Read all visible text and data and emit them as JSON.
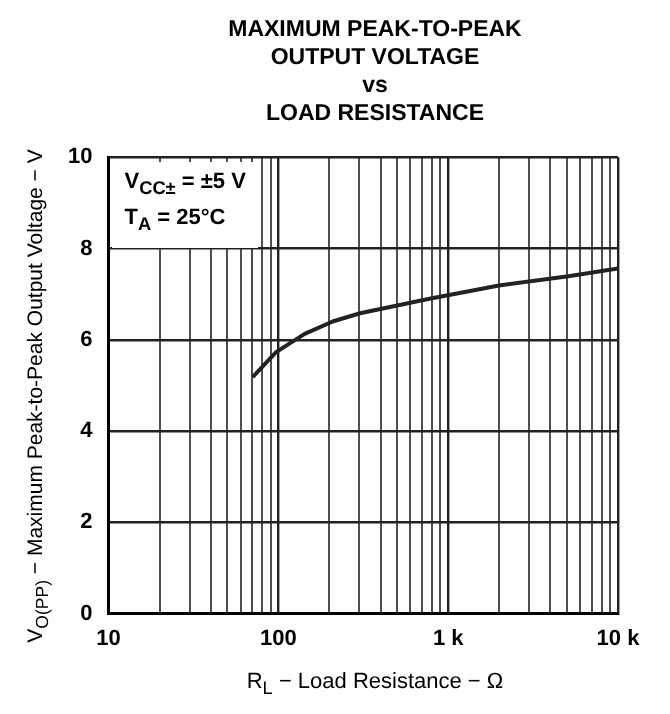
{
  "chart_data": {
    "type": "line",
    "title": "MAXIMUM PEAK-TO-PEAK\nOUTPUT VOLTAGE\nvs\nLOAD RESISTANCE",
    "xlabel": "R$_{L}$ − Load Resistance − Ω",
    "ylabel": "V$_{O(PP)}$ − Maximum Peak-to-Peak Output Voltage − V",
    "annotations": [
      "V$_{CC±}$ = ±5 V",
      "T$_{A}$ = 25°C"
    ],
    "log": "x",
    "grid": true,
    "marker": "none",
    "line_style": "solid",
    "x": [
      70.6,
      97,
      143,
      209,
      303,
      776,
      1990,
      5100,
      10000
    ],
    "series": [
      {
        "color": "#222222",
        "values": [
          5.18,
          5.73,
          6.13,
          6.4,
          6.58,
          6.9,
          7.19,
          7.39,
          7.56
        ]
      }
    ],
    "xlim": [
      10,
      10000
    ],
    "xticks": [
      {
        "value": 10,
        "label": "10"
      },
      {
        "value": 20,
        "label": null
      },
      {
        "value": 30,
        "label": null
      },
      {
        "value": 40,
        "label": null
      },
      {
        "value": 50,
        "label": null
      },
      {
        "value": 60,
        "label": null
      },
      {
        "value": 70,
        "label": null
      },
      {
        "value": 80,
        "label": null
      },
      {
        "value": 90,
        "label": null
      },
      {
        "value": 100,
        "label": "100"
      },
      {
        "value": 200,
        "label": null
      },
      {
        "value": 300,
        "label": null
      },
      {
        "value": 400,
        "label": null
      },
      {
        "value": 500,
        "label": null
      },
      {
        "value": 600,
        "label": null
      },
      {
        "value": 700,
        "label": null
      },
      {
        "value": 800,
        "label": null
      },
      {
        "value": 900,
        "label": null
      },
      {
        "value": 1000,
        "label": "1 k"
      },
      {
        "value": 2000,
        "label": null
      },
      {
        "value": 3000,
        "label": null
      },
      {
        "value": 4000,
        "label": null
      },
      {
        "value": 5000,
        "label": null
      },
      {
        "value": 6000,
        "label": null
      },
      {
        "value": 7000,
        "label": null
      },
      {
        "value": 8000,
        "label": null
      },
      {
        "value": 9000,
        "label": null
      },
      {
        "value": 10000,
        "label": "10 k"
      }
    ],
    "ylim": [
      0,
      10
    ],
    "yticks": [
      0,
      2,
      4,
      6,
      8,
      10
    ]
  }
}
